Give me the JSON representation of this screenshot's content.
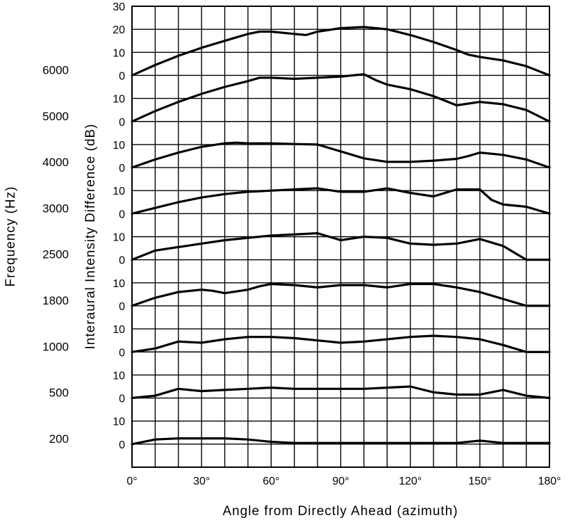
{
  "chart_data": {
    "type": "line",
    "title": "",
    "xlabel": "Angle from Directly Ahead (azimuth)",
    "ylabel": "Interaural Intensity Difference (dB)",
    "left_axis_label": "Frequency (Hz)",
    "x_ticks": [
      "0°",
      "30°",
      "60°",
      "90°",
      "120°",
      "150°",
      "180°"
    ],
    "xlim": [
      0,
      180
    ],
    "grid": true,
    "layout": "stacked-panels",
    "panels": [
      {
        "frequency": "6000",
        "y_ticks": [
          "0",
          "10",
          "20",
          "30"
        ],
        "ylim": [
          0,
          30
        ],
        "x": [
          0,
          10,
          20,
          30,
          40,
          50,
          55,
          60,
          70,
          75,
          80,
          90,
          100,
          110,
          120,
          130,
          140,
          145,
          150,
          160,
          170,
          180
        ],
        "y": [
          0,
          4.5,
          8.5,
          12,
          15,
          18,
          19,
          19,
          18,
          17.5,
          19,
          20.5,
          21,
          20,
          17.5,
          14.5,
          11,
          9,
          8,
          6.5,
          4,
          0
        ]
      },
      {
        "frequency": "5000",
        "y_ticks": [
          "0",
          "10"
        ],
        "ylim": [
          0,
          20
        ],
        "x": [
          0,
          10,
          20,
          30,
          40,
          50,
          55,
          60,
          70,
          80,
          90,
          95,
          100,
          105,
          110,
          120,
          130,
          140,
          150,
          160,
          170,
          180
        ],
        "y": [
          0,
          4.5,
          8.5,
          12,
          15,
          17.5,
          19,
          19,
          18.5,
          19,
          19.5,
          20,
          20.5,
          18,
          16,
          14,
          11,
          7,
          8.5,
          7.5,
          5,
          0
        ]
      },
      {
        "frequency": "4000",
        "y_ticks": [
          "0",
          "10"
        ],
        "ylim": [
          0,
          20
        ],
        "x": [
          0,
          10,
          20,
          30,
          40,
          45,
          50,
          60,
          70,
          80,
          90,
          100,
          110,
          120,
          130,
          140,
          145,
          150,
          160,
          170,
          180
        ],
        "y": [
          0,
          3.5,
          6.5,
          9,
          10.5,
          10.8,
          10.5,
          10.5,
          10.2,
          10,
          7,
          4,
          2.5,
          2.5,
          3,
          3.8,
          5,
          6.5,
          5.5,
          3.5,
          0
        ]
      },
      {
        "frequency": "3000",
        "y_ticks": [
          "0",
          "10"
        ],
        "ylim": [
          0,
          20
        ],
        "x": [
          0,
          10,
          20,
          30,
          40,
          50,
          60,
          70,
          80,
          90,
          100,
          110,
          120,
          130,
          140,
          150,
          155,
          160,
          170,
          180
        ],
        "y": [
          0,
          2.5,
          5,
          7,
          8.5,
          9.5,
          10,
          10.5,
          11,
          9.5,
          9.5,
          11,
          9,
          7.5,
          10.5,
          10.5,
          6,
          4,
          3,
          0
        ]
      },
      {
        "frequency": "2500",
        "y_ticks": [
          "0",
          "10"
        ],
        "ylim": [
          0,
          20
        ],
        "x": [
          0,
          10,
          20,
          30,
          40,
          50,
          60,
          70,
          80,
          90,
          100,
          110,
          120,
          130,
          140,
          150,
          160,
          170,
          180
        ],
        "y": [
          0,
          4,
          5.5,
          7,
          8.5,
          9.5,
          10.5,
          11,
          11.5,
          8.5,
          10,
          9.5,
          7,
          6.5,
          7,
          9,
          6,
          0,
          0
        ]
      },
      {
        "frequency": "1800",
        "y_ticks": [
          "0",
          "10"
        ],
        "ylim": [
          0,
          20
        ],
        "x": [
          0,
          10,
          20,
          30,
          35,
          40,
          50,
          55,
          60,
          70,
          80,
          90,
          100,
          110,
          120,
          130,
          140,
          150,
          160,
          170,
          180
        ],
        "y": [
          0,
          3.5,
          6,
          7,
          6.5,
          5.5,
          7,
          8.5,
          9.5,
          9,
          8,
          9,
          9,
          8,
          9.5,
          9.5,
          8,
          6,
          3,
          0,
          0
        ]
      },
      {
        "frequency": "1000",
        "y_ticks": [
          "0",
          "10"
        ],
        "ylim": [
          0,
          20
        ],
        "x": [
          0,
          10,
          20,
          30,
          40,
          50,
          60,
          70,
          80,
          90,
          100,
          110,
          120,
          130,
          140,
          150,
          160,
          170,
          180
        ],
        "y": [
          0,
          1.5,
          4.5,
          4,
          5.5,
          6.5,
          6.5,
          6,
          5,
          4,
          4.5,
          5.5,
          6.5,
          7,
          6.5,
          5.5,
          3,
          0,
          0
        ]
      },
      {
        "frequency": "500",
        "y_ticks": [
          "0",
          "10"
        ],
        "ylim": [
          0,
          20
        ],
        "x": [
          0,
          10,
          20,
          30,
          40,
          50,
          60,
          70,
          80,
          90,
          100,
          110,
          120,
          130,
          140,
          150,
          160,
          170,
          180
        ],
        "y": [
          0,
          1,
          4,
          3,
          3.5,
          4,
          4.5,
          4,
          4,
          4,
          4,
          4.5,
          5,
          2.5,
          1.5,
          1.5,
          3.5,
          1,
          0
        ]
      },
      {
        "frequency": "200",
        "y_ticks": [
          "0",
          "10"
        ],
        "ylim": [
          0,
          20
        ],
        "x": [
          0,
          10,
          20,
          30,
          40,
          50,
          60,
          70,
          80,
          90,
          100,
          110,
          120,
          130,
          140,
          150,
          160,
          170,
          180
        ],
        "y": [
          0,
          2,
          2.5,
          2.5,
          2.5,
          2,
          1,
          0.5,
          0.5,
          0.5,
          0.5,
          0.5,
          0.5,
          0.5,
          0.5,
          1.5,
          0.5,
          0.5,
          0.5
        ]
      }
    ]
  }
}
